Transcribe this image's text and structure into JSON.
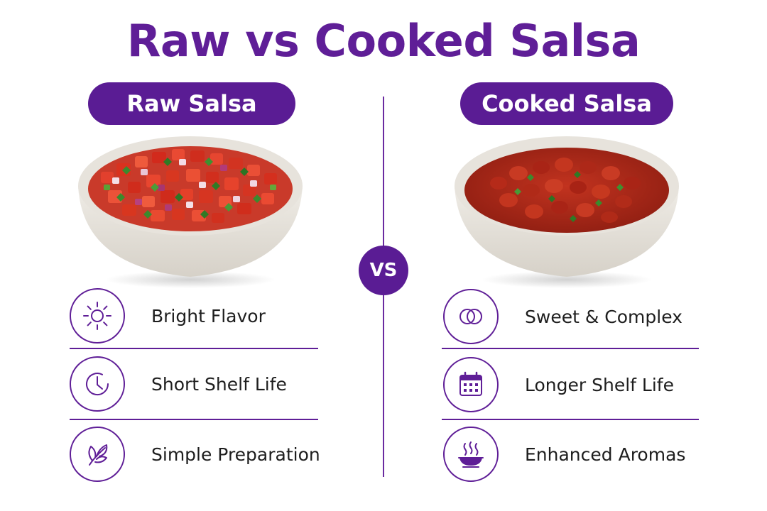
{
  "title": "Raw vs Cooked Salsa",
  "vs_label": "VS",
  "colors": {
    "accent": "#5a1c94",
    "title": "#5f1e97",
    "text": "#1e1e1e"
  },
  "left": {
    "heading": "Raw Salsa",
    "image": "raw-salsa-bowl",
    "features": [
      {
        "icon": "sun-icon",
        "label": "Bright Flavor"
      },
      {
        "icon": "clock-icon",
        "label": "Short Shelf Life"
      },
      {
        "icon": "leaf-icon",
        "label": "Simple Preparation"
      }
    ]
  },
  "right": {
    "heading": "Cooked Salsa",
    "image": "cooked-salsa-bowl",
    "features": [
      {
        "icon": "overlapping-circles-icon",
        "label": "Sweet & Complex"
      },
      {
        "icon": "calendar-icon",
        "label": "Longer Shelf Life"
      },
      {
        "icon": "steaming-bowl-icon",
        "label": "Enhanced Aromas"
      }
    ]
  }
}
